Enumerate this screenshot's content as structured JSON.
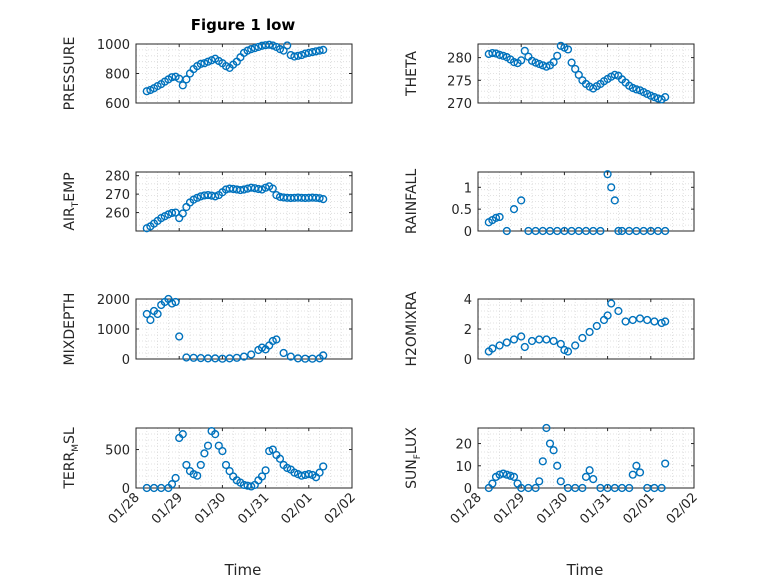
{
  "figure": {
    "title": "Figure 1 low",
    "xlabel": "Time",
    "marker_color": "#0072bd",
    "grid_color": "#d9d9d9",
    "axis_color": "#262626"
  },
  "chart_data": [
    {
      "id": "pressure",
      "type": "scatter",
      "title": "Figure 1 low",
      "ylabel_parts": [
        "PRESSURE"
      ],
      "xlabel": "",
      "ylim": [
        600,
        1000
      ],
      "yticks": [
        600,
        800,
        1000
      ],
      "ytick_labels": [
        "600",
        "800",
        "1000"
      ],
      "xlim": [
        "01/28",
        "02/02"
      ],
      "xticks": [],
      "grid": true,
      "x": [
        "01/28 06:00",
        "01/28 08:00",
        "01/28 10:00",
        "01/28 12:00",
        "01/28 14:00",
        "01/28 16:00",
        "01/28 18:00",
        "01/28 20:00",
        "01/28 22:00",
        "01/29 00:00",
        "01/29 02:00",
        "01/29 04:00",
        "01/29 06:00",
        "01/29 08:00",
        "01/29 10:00",
        "01/29 12:00",
        "01/29 14:00",
        "01/29 16:00",
        "01/29 18:00",
        "01/29 20:00",
        "01/29 22:00",
        "01/30 00:00",
        "01/30 02:00",
        "01/30 04:00",
        "01/30 06:00",
        "01/30 08:00",
        "01/30 10:00",
        "01/30 12:00",
        "01/30 14:00",
        "01/30 16:00",
        "01/30 18:00",
        "01/30 20:00",
        "01/30 22:00",
        "01/31 00:00",
        "01/31 02:00",
        "01/31 04:00",
        "01/31 06:00",
        "01/31 08:00",
        "01/31 10:00",
        "01/31 12:00",
        "01/31 14:00",
        "01/31 16:00",
        "01/31 18:00",
        "01/31 20:00",
        "01/31 22:00",
        "02/01 00:00",
        "02/01 02:00",
        "02/01 04:00",
        "02/01 06:00",
        "02/01 08:00"
      ],
      "y": [
        680,
        688,
        700,
        715,
        728,
        745,
        760,
        775,
        778,
        765,
        720,
        760,
        800,
        830,
        850,
        865,
        870,
        880,
        890,
        900,
        885,
        870,
        850,
        838,
        860,
        880,
        910,
        940,
        955,
        965,
        972,
        980,
        988,
        992,
        995,
        990,
        980,
        965,
        955,
        990,
        925,
        915,
        920,
        925,
        935,
        940,
        945,
        950,
        955,
        960
      ]
    },
    {
      "id": "theta",
      "type": "scatter",
      "ylabel_parts": [
        "THETA"
      ],
      "xlabel": "",
      "ylim": [
        270,
        283
      ],
      "yticks": [
        270,
        275,
        280
      ],
      "ytick_labels": [
        "270",
        "275",
        "280"
      ],
      "xlim": [
        "01/28",
        "02/02"
      ],
      "xticks": [],
      "grid": true,
      "x": [
        "01/28 06:00",
        "01/28 08:00",
        "01/28 10:00",
        "01/28 12:00",
        "01/28 14:00",
        "01/28 16:00",
        "01/28 18:00",
        "01/28 20:00",
        "01/28 22:00",
        "01/29 00:00",
        "01/29 02:00",
        "01/29 04:00",
        "01/29 06:00",
        "01/29 08:00",
        "01/29 10:00",
        "01/29 12:00",
        "01/29 14:00",
        "01/29 16:00",
        "01/29 18:00",
        "01/29 20:00",
        "01/29 22:00",
        "01/30 00:00",
        "01/30 02:00",
        "01/30 04:00",
        "01/30 06:00",
        "01/30 08:00",
        "01/30 10:00",
        "01/30 12:00",
        "01/30 14:00",
        "01/30 16:00",
        "01/30 18:00",
        "01/30 20:00",
        "01/30 22:00",
        "01/31 00:00",
        "01/31 02:00",
        "01/31 04:00",
        "01/31 06:00",
        "01/31 08:00",
        "01/31 10:00",
        "01/31 12:00",
        "01/31 14:00",
        "01/31 16:00",
        "01/31 18:00",
        "01/31 20:00",
        "01/31 22:00",
        "02/01 00:00",
        "02/01 02:00",
        "02/01 04:00",
        "02/01 06:00",
        "02/01 08:00"
      ],
      "y": [
        280.8,
        281,
        280.9,
        280.6,
        280.4,
        280.1,
        279.6,
        279,
        278.8,
        279.4,
        281.5,
        280.2,
        279.3,
        278.9,
        278.6,
        278.3,
        278,
        278.3,
        279,
        280.4,
        282.6,
        282.2,
        281.8,
        278.9,
        277.5,
        276.2,
        275,
        274.2,
        273.6,
        273.2,
        273.7,
        274.2,
        274.8,
        275.3,
        275.8,
        276.2,
        276,
        275.2,
        274.5,
        273.8,
        273.3,
        273,
        272.8,
        272.4,
        272,
        271.6,
        271.3,
        271,
        270.8,
        271.3
      ]
    },
    {
      "id": "air_temp",
      "type": "scatter",
      "ylabel_parts": [
        "AIR",
        "T",
        "EMP"
      ],
      "xlabel": "",
      "ylim": [
        250,
        282
      ],
      "yticks": [
        260,
        270,
        280
      ],
      "ytick_labels": [
        "260",
        "270",
        "280"
      ],
      "xlim": [
        "01/28",
        "02/02"
      ],
      "xticks": [],
      "grid": true,
      "x": [
        "01/28 06:00",
        "01/28 08:00",
        "01/28 10:00",
        "01/28 12:00",
        "01/28 14:00",
        "01/28 16:00",
        "01/28 18:00",
        "01/28 20:00",
        "01/28 22:00",
        "01/29 00:00",
        "01/29 02:00",
        "01/29 04:00",
        "01/29 06:00",
        "01/29 08:00",
        "01/29 10:00",
        "01/29 12:00",
        "01/29 14:00",
        "01/29 16:00",
        "01/29 18:00",
        "01/29 20:00",
        "01/29 22:00",
        "01/30 00:00",
        "01/30 02:00",
        "01/30 04:00",
        "01/30 06:00",
        "01/30 08:00",
        "01/30 10:00",
        "01/30 12:00",
        "01/30 14:00",
        "01/30 16:00",
        "01/30 18:00",
        "01/30 20:00",
        "01/30 22:00",
        "01/31 00:00",
        "01/31 02:00",
        "01/31 04:00",
        "01/31 06:00",
        "01/31 08:00",
        "01/31 10:00",
        "01/31 12:00",
        "01/31 14:00",
        "01/31 16:00",
        "01/31 18:00",
        "01/31 20:00",
        "01/31 22:00",
        "02/01 00:00",
        "02/01 02:00",
        "02/01 04:00",
        "02/01 06:00",
        "02/01 08:00"
      ],
      "y": [
        251.5,
        252.5,
        254,
        255.5,
        257,
        258,
        259,
        259.8,
        260,
        257,
        259.5,
        263,
        265.5,
        267,
        268,
        268.8,
        269.3,
        269.5,
        269.2,
        268.8,
        269.5,
        271,
        272.5,
        273,
        272.8,
        272.5,
        272.2,
        272.5,
        273,
        273.5,
        273.2,
        272.8,
        272.5,
        273.5,
        274.2,
        273,
        269.5,
        268.5,
        268.2,
        268,
        267.9,
        268,
        268.1,
        268,
        267.9,
        268,
        268.1,
        268,
        267.8,
        267.3
      ]
    },
    {
      "id": "rainfall",
      "type": "scatter",
      "ylabel_parts": [
        "RAINFALL"
      ],
      "xlabel": "",
      "ylim": [
        0,
        1.35
      ],
      "yticks": [
        0,
        0.5,
        1
      ],
      "ytick_labels": [
        "0",
        "0.5",
        "1"
      ],
      "xlim": [
        "01/28",
        "02/02"
      ],
      "xticks": [],
      "grid": true,
      "x": [
        "01/28 06:00",
        "01/28 08:00",
        "01/28 10:00",
        "01/28 12:00",
        "01/28 16:00",
        "01/28 20:00",
        "01/29 00:00",
        "01/29 04:00",
        "01/29 08:00",
        "01/29 12:00",
        "01/29 16:00",
        "01/29 20:00",
        "01/30 00:00",
        "01/30 04:00",
        "01/30 08:00",
        "01/30 12:00",
        "01/30 16:00",
        "01/30 20:00",
        "01/31 00:00",
        "01/31 02:00",
        "01/31 04:00",
        "01/31 06:00",
        "01/31 08:00",
        "01/31 12:00",
        "01/31 16:00",
        "01/31 20:00",
        "02/01 00:00",
        "02/01 04:00",
        "02/01 08:00"
      ],
      "y": [
        0.2,
        0.25,
        0.3,
        0.32,
        0,
        0.5,
        0.7,
        0,
        0,
        0,
        0,
        0,
        0,
        0,
        0,
        0,
        0,
        0,
        1.3,
        1,
        0.7,
        0,
        0,
        0,
        0,
        0,
        0,
        0,
        0
      ]
    },
    {
      "id": "mixdepth",
      "type": "scatter",
      "ylabel_parts": [
        "MIXDEPTH"
      ],
      "xlabel": "",
      "ylim": [
        0,
        2000
      ],
      "yticks": [
        0,
        1000,
        2000
      ],
      "ytick_labels": [
        "0",
        "1000",
        "2000"
      ],
      "xlim": [
        "01/28",
        "02/02"
      ],
      "xticks": [],
      "grid": true,
      "x": [
        "01/28 06:00",
        "01/28 08:00",
        "01/28 10:00",
        "01/28 12:00",
        "01/28 14:00",
        "01/28 16:00",
        "01/28 18:00",
        "01/28 20:00",
        "01/28 22:00",
        "01/29 00:00",
        "01/29 04:00",
        "01/29 08:00",
        "01/29 12:00",
        "01/29 16:00",
        "01/29 20:00",
        "01/30 00:00",
        "01/30 04:00",
        "01/30 08:00",
        "01/30 12:00",
        "01/30 16:00",
        "01/30 20:00",
        "01/30 22:00",
        "01/31 00:00",
        "01/31 02:00",
        "01/31 04:00",
        "01/31 06:00",
        "01/31 10:00",
        "01/31 14:00",
        "01/31 18:00",
        "01/31 22:00",
        "02/01 02:00",
        "02/01 06:00",
        "02/01 08:00"
      ],
      "y": [
        1500,
        1300,
        1600,
        1500,
        1800,
        1900,
        2000,
        1850,
        1900,
        750,
        50,
        40,
        30,
        20,
        20,
        10,
        20,
        40,
        80,
        150,
        300,
        380,
        320,
        450,
        600,
        650,
        200,
        80,
        20,
        10,
        10,
        20,
        120
      ]
    },
    {
      "id": "h2omixra",
      "type": "scatter",
      "ylabel_parts": [
        "H2OMIXRA"
      ],
      "xlabel": "",
      "ylim": [
        0,
        4
      ],
      "yticks": [
        0,
        2,
        4
      ],
      "ytick_labels": [
        "0",
        "2",
        "4"
      ],
      "xlim": [
        "01/28",
        "02/02"
      ],
      "xticks": [],
      "grid": true,
      "x": [
        "01/28 06:00",
        "01/28 08:00",
        "01/28 12:00",
        "01/28 16:00",
        "01/28 20:00",
        "01/29 00:00",
        "01/29 02:00",
        "01/29 06:00",
        "01/29 10:00",
        "01/29 14:00",
        "01/29 18:00",
        "01/29 22:00",
        "01/30 00:00",
        "01/30 02:00",
        "01/30 06:00",
        "01/30 10:00",
        "01/30 14:00",
        "01/30 18:00",
        "01/30 22:00",
        "01/31 00:00",
        "01/31 02:00",
        "01/31 06:00",
        "01/31 10:00",
        "01/31 14:00",
        "01/31 18:00",
        "01/31 22:00",
        "02/01 02:00",
        "02/01 06:00",
        "02/01 08:00"
      ],
      "y": [
        0.5,
        0.7,
        0.9,
        1.1,
        1.3,
        1.5,
        0.8,
        1.2,
        1.3,
        1.3,
        1.2,
        1,
        0.6,
        0.5,
        0.9,
        1.4,
        1.8,
        2.2,
        2.6,
        2.9,
        3.7,
        3.2,
        2.5,
        2.6,
        2.7,
        2.6,
        2.5,
        2.4,
        2.5
      ]
    },
    {
      "id": "terr_msl",
      "type": "scatter",
      "ylabel_parts": [
        "TERR",
        "M",
        "SL"
      ],
      "xlabel": "Time",
      "ylim": [
        0,
        780
      ],
      "yticks": [
        0,
        500
      ],
      "ytick_labels": [
        "0",
        "500"
      ],
      "xlim": [
        "01/28",
        "02/02"
      ],
      "xticks": [
        "01/28",
        "01/29",
        "01/30",
        "01/31",
        "02/01",
        "02/02"
      ],
      "grid": true,
      "x": [
        "01/28 06:00",
        "01/28 10:00",
        "01/28 14:00",
        "01/28 18:00",
        "01/28 20:00",
        "01/28 22:00",
        "01/29 00:00",
        "01/29 02:00",
        "01/29 04:00",
        "01/29 06:00",
        "01/29 08:00",
        "01/29 10:00",
        "01/29 12:00",
        "01/29 14:00",
        "01/29 16:00",
        "01/29 18:00",
        "01/29 20:00",
        "01/29 22:00",
        "01/30 00:00",
        "01/30 02:00",
        "01/30 04:00",
        "01/30 06:00",
        "01/30 08:00",
        "01/30 10:00",
        "01/30 12:00",
        "01/30 14:00",
        "01/30 16:00",
        "01/30 18:00",
        "01/30 20:00",
        "01/30 22:00",
        "01/31 00:00",
        "01/31 02:00",
        "01/31 04:00",
        "01/31 06:00",
        "01/31 08:00",
        "01/31 10:00",
        "01/31 12:00",
        "01/31 14:00",
        "01/31 16:00",
        "01/31 18:00",
        "01/31 20:00",
        "01/31 22:00",
        "02/01 00:00",
        "02/01 02:00",
        "02/01 04:00",
        "02/01 06:00",
        "02/01 08:00"
      ],
      "y": [
        0,
        0,
        0,
        0,
        50,
        130,
        650,
        700,
        300,
        220,
        180,
        160,
        300,
        450,
        550,
        740,
        700,
        550,
        480,
        300,
        220,
        150,
        100,
        70,
        40,
        30,
        20,
        40,
        100,
        150,
        230,
        480,
        500,
        430,
        380,
        300,
        260,
        240,
        200,
        180,
        160,
        170,
        180,
        170,
        140,
        200,
        280
      ]
    },
    {
      "id": "sun_flux",
      "type": "scatter",
      "ylabel_parts": [
        "SUN",
        "F",
        "LUX"
      ],
      "xlabel": "Time",
      "ylim": [
        0,
        27
      ],
      "yticks": [
        0,
        10,
        20
      ],
      "ytick_labels": [
        "0",
        "10",
        "20"
      ],
      "xlim": [
        "01/28",
        "02/02"
      ],
      "xticks": [
        "01/28",
        "01/29",
        "01/30",
        "01/31",
        "02/01",
        "02/02"
      ],
      "grid": true,
      "x": [
        "01/28 06:00",
        "01/28 08:00",
        "01/28 10:00",
        "01/28 12:00",
        "01/28 14:00",
        "01/28 16:00",
        "01/28 18:00",
        "01/28 20:00",
        "01/28 22:00",
        "01/29 00:00",
        "01/29 04:00",
        "01/29 08:00",
        "01/29 10:00",
        "01/29 12:00",
        "01/29 14:00",
        "01/29 16:00",
        "01/29 18:00",
        "01/29 20:00",
        "01/29 22:00",
        "01/30 02:00",
        "01/30 06:00",
        "01/30 10:00",
        "01/30 12:00",
        "01/30 14:00",
        "01/30 16:00",
        "01/30 20:00",
        "01/31 00:00",
        "01/31 04:00",
        "01/31 08:00",
        "01/31 12:00",
        "01/31 14:00",
        "01/31 16:00",
        "01/31 18:00",
        "01/31 22:00",
        "02/01 02:00",
        "02/01 06:00",
        "02/01 08:00"
      ],
      "y": [
        0,
        2,
        5,
        6,
        6.5,
        6,
        5.5,
        5,
        2,
        0,
        0,
        0,
        3,
        12,
        27,
        20,
        17,
        10,
        3,
        0,
        0,
        0,
        5,
        8,
        4,
        0,
        0,
        0,
        0,
        0,
        6,
        10,
        7,
        0,
        0,
        0,
        11
      ]
    }
  ]
}
